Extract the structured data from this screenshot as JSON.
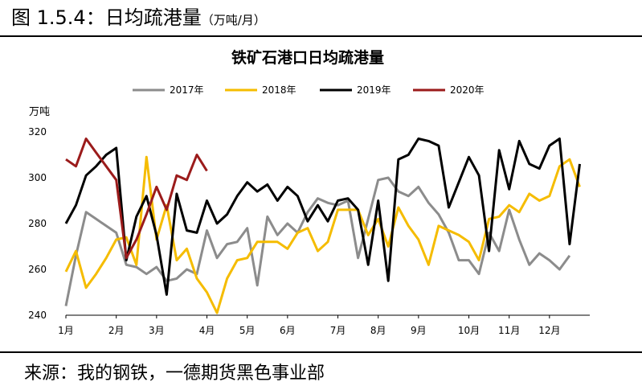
{
  "figure": {
    "title": "图 1.5.4：日均疏港量",
    "unit": "（万吨/月）",
    "source": "来源：我的钢铁，一德期货黑色事业部"
  },
  "chart_data": {
    "type": "line",
    "title": "铁矿石港口日均疏港量",
    "ylabel": "万吨",
    "xlabel": "",
    "ylim": [
      240,
      320
    ],
    "yticks": [
      240,
      260,
      280,
      300,
      320
    ],
    "xlim": [
      1,
      53
    ],
    "x_ticks": [
      {
        "label": "1月",
        "x": 1
      },
      {
        "label": "2月",
        "x": 6
      },
      {
        "label": "3月",
        "x": 10
      },
      {
        "label": "4月",
        "x": 15
      },
      {
        "label": "5月",
        "x": 19
      },
      {
        "label": "6月",
        "x": 23
      },
      {
        "label": "7月",
        "x": 28
      },
      {
        "label": "8月",
        "x": 32
      },
      {
        "label": "9月",
        "x": 36
      },
      {
        "label": "10月",
        "x": 41
      },
      {
        "label": "11月",
        "x": 45
      },
      {
        "label": "12月",
        "x": 49
      }
    ],
    "grid": false,
    "legend": "top",
    "series": [
      {
        "name": "2017年",
        "color": "#8c8c8c",
        "start_x": 1,
        "values": [
          244,
          266,
          285,
          282,
          279,
          276,
          262,
          261,
          258,
          261,
          255,
          256,
          260,
          258,
          277,
          265,
          271,
          272,
          278,
          253,
          283,
          275,
          280,
          276,
          285,
          291,
          289,
          288,
          290,
          265,
          282,
          299,
          300,
          294,
          292,
          296,
          289,
          284,
          276,
          264,
          264,
          258,
          276,
          268,
          286,
          273,
          262,
          267,
          264,
          260,
          266
        ]
      },
      {
        "name": "2018年",
        "color": "#f5bc00",
        "start_x": 1,
        "values": [
          259,
          268,
          252,
          258,
          265,
          273,
          274,
          262,
          309,
          273,
          288,
          264,
          269,
          256,
          250,
          241,
          256,
          264,
          265,
          272,
          272,
          272,
          269,
          276,
          278,
          268,
          272,
          286,
          286,
          286,
          275,
          282,
          270,
          287,
          279,
          273,
          262,
          279,
          277,
          275,
          272,
          264,
          282,
          283,
          288,
          285,
          293,
          290,
          292,
          305,
          308,
          296
        ]
      },
      {
        "name": "2019年",
        "color": "#000000",
        "start_x": 1,
        "values": [
          280,
          288,
          301,
          305,
          310,
          313,
          264,
          283,
          292,
          275,
          249,
          293,
          277,
          276,
          290,
          280,
          284,
          292,
          298,
          294,
          297,
          290,
          296,
          292,
          281,
          288,
          281,
          290,
          291,
          286,
          262,
          290,
          255,
          308,
          310,
          317,
          316,
          314,
          287,
          298,
          309,
          301,
          268,
          312,
          295,
          316,
          306,
          304,
          314,
          317,
          271,
          306
        ]
      },
      {
        "name": "2020年",
        "color": "#9b1b1b",
        "start_x": 1,
        "values": [
          308,
          305,
          317,
          311,
          305,
          299,
          265,
          273,
          284,
          296,
          286,
          301,
          299,
          310,
          303
        ]
      }
    ]
  }
}
